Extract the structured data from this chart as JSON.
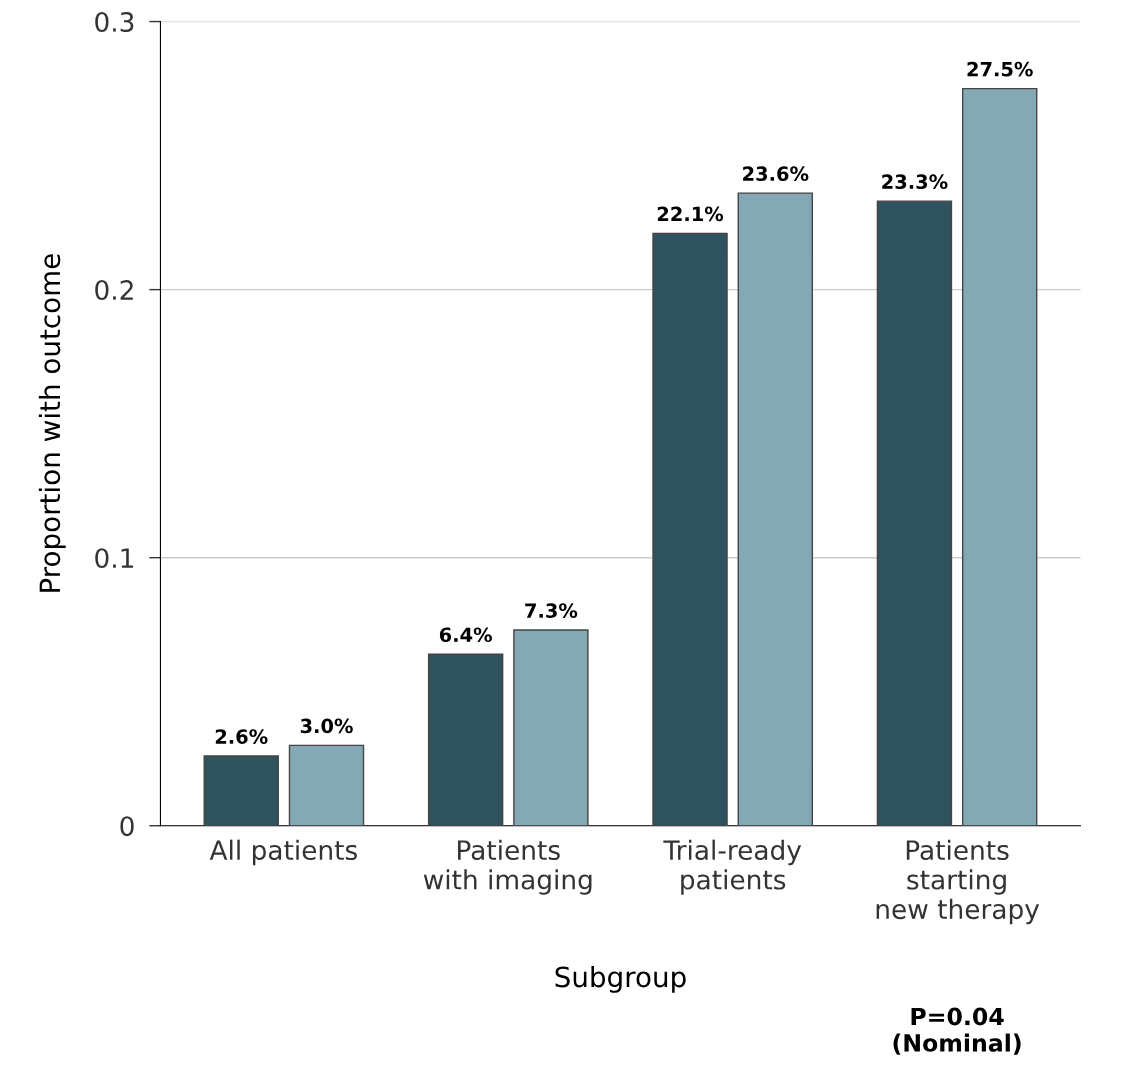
{
  "chart_data": {
    "type": "bar",
    "ylabel": "Proportion with outcome",
    "xlabel": "Subgroup",
    "categories": [
      "All patients",
      "Patients\nwith imaging",
      "Trial-ready\npatients",
      "Patients\nstarting\nnew therapy"
    ],
    "series": [
      {
        "color": "#2e535e",
        "values": [
          0.026,
          0.064,
          0.221,
          0.233
        ],
        "value_labels": [
          "2.6%",
          "6.4%",
          "22.1%",
          "23.3%"
        ]
      },
      {
        "color": "#84a9b5",
        "values": [
          0.03,
          0.073,
          0.236,
          0.275
        ],
        "value_labels": [
          "3.0%",
          "7.3%",
          "23.6%",
          "27.5%"
        ]
      }
    ],
    "ylim": [
      0,
      0.3
    ],
    "yticks": [
      {
        "value": 0,
        "label": "0"
      },
      0.1,
      0.2,
      0.3
    ],
    "grid": "y",
    "annotations": [
      "P=0.04\n(Nominal)"
    ]
  }
}
